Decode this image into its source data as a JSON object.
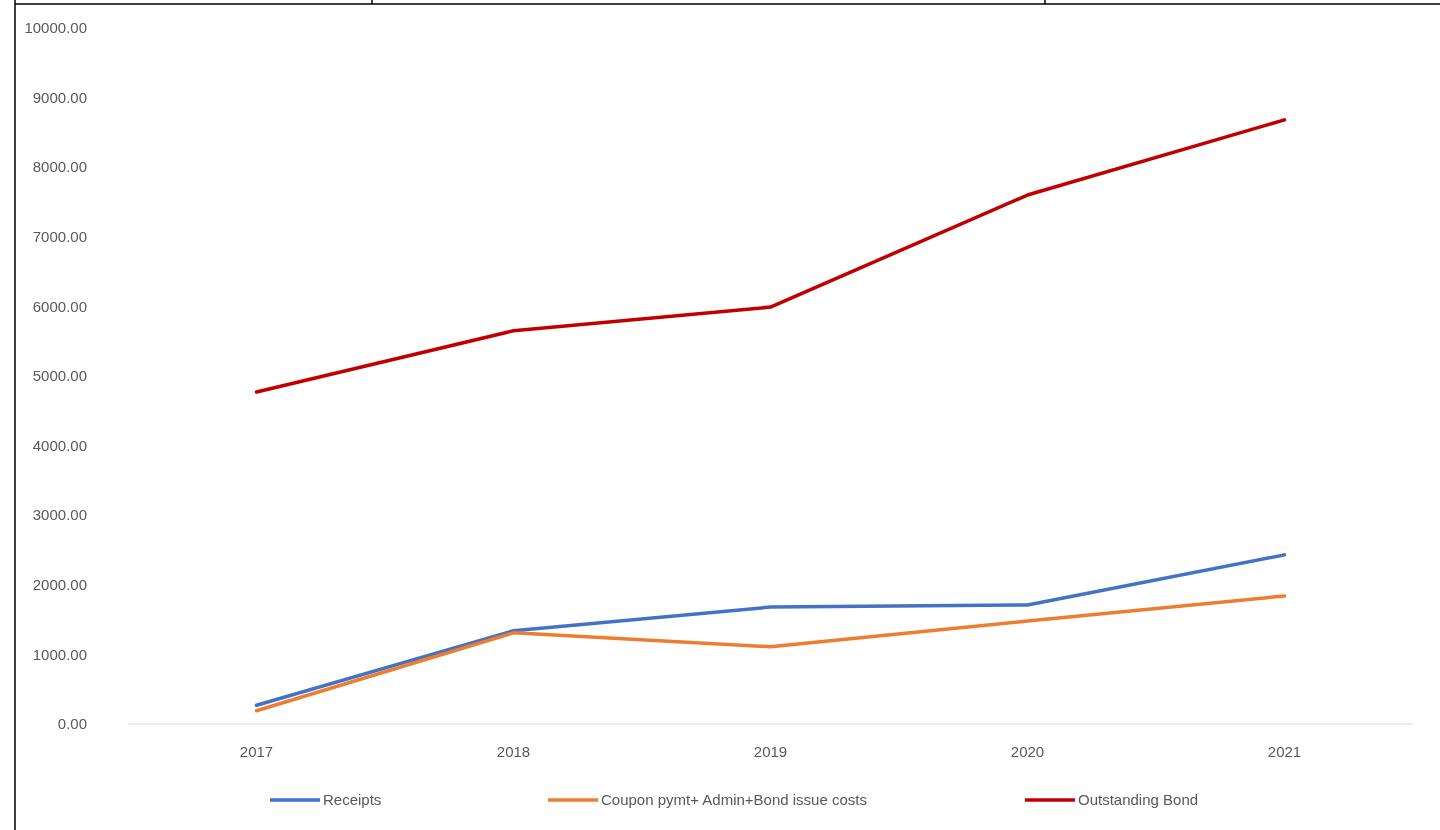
{
  "chart_data": {
    "type": "line",
    "categories": [
      "2017",
      "2018",
      "2019",
      "2020",
      "2021"
    ],
    "series": [
      {
        "name": "Receipts",
        "color": "#4472c4",
        "values": [
          270,
          1340,
          1680,
          1710,
          2430
        ]
      },
      {
        "name": "Coupon pymt+ Admin+Bond issue costs",
        "color": "#ed7d31",
        "values": [
          190,
          1310,
          1110,
          1480,
          1840
        ]
      },
      {
        "name": "Outstanding Bond",
        "color": "#c00000",
        "values": [
          4770,
          5650,
          5990,
          7600,
          8680
        ]
      }
    ],
    "ylim": [
      0,
      10000
    ],
    "yticks": [
      {
        "value": 0,
        "label": "0.00"
      },
      {
        "value": 1000,
        "label": "1000.00"
      },
      {
        "value": 2000,
        "label": "2000.00"
      },
      {
        "value": 3000,
        "label": "3000.00"
      },
      {
        "value": 4000,
        "label": "4000.00"
      },
      {
        "value": 5000,
        "label": "5000.00"
      },
      {
        "value": 6000,
        "label": "6000.00"
      },
      {
        "value": 7000,
        "label": "7000.00"
      },
      {
        "value": 8000,
        "label": "8000.00"
      },
      {
        "value": 9000,
        "label": "9000.00"
      },
      {
        "value": 10000,
        "label": "10000.00"
      }
    ],
    "grid": false,
    "legend": "bottom",
    "marker": "none",
    "line_style": "solid"
  }
}
